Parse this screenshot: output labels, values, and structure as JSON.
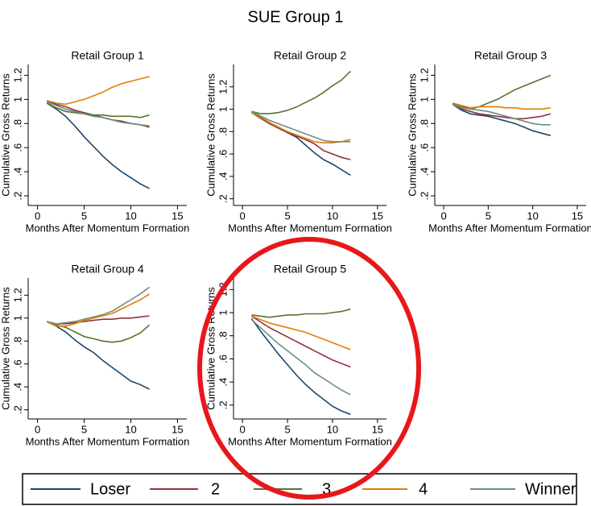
{
  "title": "SUE Group 1",
  "chart_data": [
    {
      "type": "line",
      "title": "Retail Group 1",
      "x_label": "Months After Momentum Formation",
      "y_label": "Cumulative Gross Returns",
      "x": [
        1,
        2,
        3,
        4,
        5,
        6,
        7,
        8,
        9,
        10,
        11,
        12
      ],
      "xlim": [
        -1,
        16
      ],
      "ylim": [
        0.12,
        1.29
      ],
      "xticks": [
        0,
        5,
        10,
        15
      ],
      "yticks": [
        {
          "value": 0.2,
          "label": ".2"
        },
        {
          "value": 0.4,
          "label": ".4"
        },
        {
          "value": 0.6,
          "label": ".6"
        },
        {
          "value": 0.8,
          "label": ".8"
        },
        1,
        1.2
      ],
      "series": [
        {
          "name": "Loser",
          "color": "#1a476f",
          "values": [
            0.97,
            0.92,
            0.86,
            0.78,
            0.69,
            0.61,
            0.53,
            0.46,
            0.4,
            0.35,
            0.3,
            0.26
          ]
        },
        {
          "name": "2",
          "color": "#90353b",
          "values": [
            0.99,
            0.96,
            0.94,
            0.91,
            0.89,
            0.87,
            0.85,
            0.83,
            0.82,
            0.8,
            0.79,
            0.77
          ]
        },
        {
          "name": "3",
          "color": "#55752f",
          "values": [
            0.97,
            0.93,
            0.9,
            0.89,
            0.88,
            0.87,
            0.87,
            0.86,
            0.86,
            0.86,
            0.85,
            0.87
          ]
        },
        {
          "name": "4",
          "color": "#e37e00",
          "values": [
            0.99,
            0.97,
            0.96,
            0.98,
            1.0,
            1.03,
            1.06,
            1.1,
            1.13,
            1.15,
            1.17,
            1.19
          ]
        },
        {
          "name": "Winner",
          "color": "#6e8e84",
          "values": [
            0.98,
            0.95,
            0.92,
            0.9,
            0.88,
            0.86,
            0.85,
            0.83,
            0.81,
            0.8,
            0.79,
            0.78
          ]
        }
      ]
    },
    {
      "type": "line",
      "title": "Retail Group 2",
      "x_label": "Months After Momentum Formation",
      "y_label": "Cumulative Gross Returns",
      "x": [
        1,
        2,
        3,
        4,
        5,
        6,
        7,
        8,
        9,
        10,
        11,
        12
      ],
      "xlim": [
        -1,
        16
      ],
      "ylim": [
        0.14,
        1.4
      ],
      "xticks": [
        0,
        5,
        10,
        15
      ],
      "yticks": [
        {
          "value": 0.2,
          "label": ".2"
        },
        {
          "value": 0.4,
          "label": ".4"
        },
        {
          "value": 0.6,
          "label": ".6"
        },
        {
          "value": 0.8,
          "label": ".8"
        },
        1,
        1.2
      ],
      "series": [
        {
          "name": "Loser",
          "color": "#1a476f",
          "values": [
            0.97,
            0.93,
            0.88,
            0.84,
            0.79,
            0.75,
            0.68,
            0.61,
            0.55,
            0.51,
            0.46,
            0.41
          ]
        },
        {
          "name": "2",
          "color": "#90353b",
          "values": [
            0.97,
            0.92,
            0.87,
            0.83,
            0.79,
            0.76,
            0.73,
            0.69,
            0.63,
            0.6,
            0.57,
            0.55
          ]
        },
        {
          "name": "3",
          "color": "#55752f",
          "values": [
            0.98,
            0.96,
            0.96,
            0.97,
            0.99,
            1.02,
            1.06,
            1.1,
            1.15,
            1.21,
            1.26,
            1.34
          ]
        },
        {
          "name": "4",
          "color": "#e37e00",
          "values": [
            0.97,
            0.93,
            0.88,
            0.84,
            0.8,
            0.77,
            0.74,
            0.71,
            0.7,
            0.7,
            0.71,
            0.73
          ]
        },
        {
          "name": "Winner",
          "color": "#6e8e84",
          "values": [
            0.98,
            0.94,
            0.9,
            0.87,
            0.84,
            0.81,
            0.78,
            0.75,
            0.72,
            0.71,
            0.71,
            0.71
          ]
        }
      ]
    },
    {
      "type": "line",
      "title": "Retail Group 3",
      "x_label": "Months After Momentum Formation",
      "y_label": "Cumulative Gross Returns",
      "x": [
        1,
        2,
        3,
        4,
        5,
        6,
        7,
        8,
        9,
        10,
        11,
        12
      ],
      "xlim": [
        -1,
        16
      ],
      "ylim": [
        0.12,
        1.29
      ],
      "xticks": [
        0,
        5,
        10,
        15
      ],
      "yticks": [
        {
          "value": 0.2,
          "label": ".2"
        },
        {
          "value": 0.4,
          "label": ".4"
        },
        {
          "value": 0.6,
          "label": ".6"
        },
        {
          "value": 0.8,
          "label": ".8"
        },
        1,
        1.2
      ],
      "series": [
        {
          "name": "Loser",
          "color": "#1a476f",
          "values": [
            0.96,
            0.91,
            0.88,
            0.87,
            0.86,
            0.84,
            0.82,
            0.8,
            0.77,
            0.74,
            0.72,
            0.7
          ]
        },
        {
          "name": "2",
          "color": "#90353b",
          "values": [
            0.96,
            0.92,
            0.9,
            0.88,
            0.87,
            0.86,
            0.85,
            0.84,
            0.84,
            0.85,
            0.86,
            0.88
          ]
        },
        {
          "name": "3",
          "color": "#55752f",
          "values": [
            0.97,
            0.94,
            0.92,
            0.94,
            0.97,
            1.0,
            1.04,
            1.08,
            1.11,
            1.14,
            1.17,
            1.2
          ]
        },
        {
          "name": "4",
          "color": "#e37e00",
          "values": [
            0.97,
            0.95,
            0.93,
            0.94,
            0.94,
            0.94,
            0.93,
            0.93,
            0.92,
            0.92,
            0.92,
            0.93
          ]
        },
        {
          "name": "Winner",
          "color": "#6e8e84",
          "values": [
            0.96,
            0.93,
            0.92,
            0.91,
            0.9,
            0.88,
            0.86,
            0.84,
            0.82,
            0.8,
            0.79,
            0.79
          ]
        }
      ]
    },
    {
      "type": "line",
      "title": "Retail Group 4",
      "x_label": "Months After Momentum Formation",
      "y_label": "Cumulative Gross Returns",
      "x": [
        1,
        2,
        3,
        4,
        5,
        6,
        7,
        8,
        9,
        10,
        11,
        12
      ],
      "xlim": [
        -1,
        16
      ],
      "ylim": [
        0.12,
        1.35
      ],
      "xticks": [
        0,
        5,
        10,
        15
      ],
      "yticks": [
        {
          "value": 0.2,
          "label": ".2"
        },
        {
          "value": 0.4,
          "label": ".4"
        },
        {
          "value": 0.6,
          "label": ".6"
        },
        {
          "value": 0.8,
          "label": ".8"
        },
        1,
        1.2
      ],
      "series": [
        {
          "name": "Loser",
          "color": "#1a476f",
          "values": [
            0.97,
            0.93,
            0.88,
            0.81,
            0.75,
            0.7,
            0.63,
            0.57,
            0.51,
            0.45,
            0.42,
            0.38
          ]
        },
        {
          "name": "2",
          "color": "#90353b",
          "values": [
            0.97,
            0.95,
            0.95,
            0.96,
            0.97,
            0.98,
            0.99,
            0.99,
            1.0,
            1.0,
            1.01,
            1.02
          ]
        },
        {
          "name": "3",
          "color": "#55752f",
          "values": [
            0.97,
            0.94,
            0.92,
            0.88,
            0.84,
            0.82,
            0.8,
            0.79,
            0.8,
            0.83,
            0.87,
            0.94
          ]
        },
        {
          "name": "4",
          "color": "#e37e00",
          "values": [
            0.97,
            0.93,
            0.93,
            0.95,
            0.98,
            1.0,
            1.02,
            1.04,
            1.08,
            1.12,
            1.16,
            1.21
          ]
        },
        {
          "name": "Winner",
          "color": "#6e8e84",
          "values": [
            0.97,
            0.95,
            0.96,
            0.97,
            0.99,
            1.01,
            1.03,
            1.06,
            1.11,
            1.16,
            1.21,
            1.27
          ]
        }
      ]
    },
    {
      "type": "line",
      "title": "Retail Group 5",
      "x_label": "Months After Momentum Formation",
      "y_label": "Cumulative Gross Returns",
      "x": [
        1,
        2,
        3,
        4,
        5,
        6,
        7,
        8,
        9,
        10,
        11,
        12
      ],
      "xlim": [
        -1,
        16
      ],
      "ylim": [
        0.08,
        1.3
      ],
      "xticks": [
        0,
        5,
        10,
        15
      ],
      "yticks": [
        {
          "value": 0.2,
          "label": ".2"
        },
        {
          "value": 0.4,
          "label": ".4"
        },
        {
          "value": 0.6,
          "label": ".6"
        },
        {
          "value": 0.8,
          "label": ".8"
        },
        1,
        1.2
      ],
      "series": [
        {
          "name": "Loser",
          "color": "#1a476f",
          "values": [
            0.95,
            0.84,
            0.74,
            0.64,
            0.55,
            0.46,
            0.38,
            0.31,
            0.25,
            0.19,
            0.15,
            0.12
          ]
        },
        {
          "name": "2",
          "color": "#90353b",
          "values": [
            0.97,
            0.92,
            0.87,
            0.83,
            0.79,
            0.75,
            0.71,
            0.67,
            0.63,
            0.59,
            0.56,
            0.53
          ]
        },
        {
          "name": "3",
          "color": "#55752f",
          "values": [
            0.98,
            0.97,
            0.96,
            0.97,
            0.98,
            0.98,
            0.99,
            0.99,
            0.99,
            1.0,
            1.01,
            1.03
          ]
        },
        {
          "name": "4",
          "color": "#e37e00",
          "values": [
            0.97,
            0.94,
            0.91,
            0.89,
            0.87,
            0.85,
            0.83,
            0.8,
            0.77,
            0.74,
            0.71,
            0.68
          ]
        },
        {
          "name": "Winner",
          "color": "#6e8e84",
          "values": [
            0.94,
            0.87,
            0.8,
            0.73,
            0.67,
            0.61,
            0.55,
            0.48,
            0.43,
            0.38,
            0.33,
            0.29
          ]
        }
      ]
    }
  ]
}
